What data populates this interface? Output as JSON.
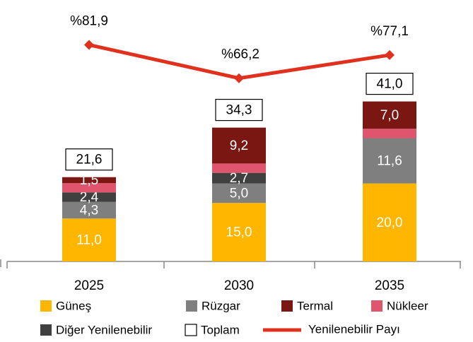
{
  "chart_data": {
    "type": "bar",
    "stacked": true,
    "categories": [
      "2025",
      "2030",
      "2035"
    ],
    "ylim": [
      0,
      67
    ],
    "y2lim": [
      -20,
      103
    ],
    "series": [
      {
        "name": "Güneş",
        "type": "bar",
        "color": "#FFB600",
        "values": [
          11.0,
          15.0,
          20.0
        ],
        "value_labels": [
          "11,0",
          "15,0",
          "20,0"
        ]
      },
      {
        "name": "Rüzgar",
        "type": "bar",
        "color": "#7F7F7F",
        "values": [
          4.3,
          5.0,
          11.6
        ],
        "value_labels": [
          "4,3",
          "5,0",
          "11,6"
        ]
      },
      {
        "name": "Diğer Yenilenebilir",
        "type": "bar",
        "color": "#404040",
        "values": [
          2.4,
          2.7,
          0
        ],
        "value_labels": [
          "2,4",
          "2,7",
          null
        ]
      },
      {
        "name": "Nükleer",
        "type": "bar",
        "color": "#E0556E",
        "values": [
          2.4,
          2.4,
          2.4
        ],
        "value_labels": [
          null,
          null,
          null
        ]
      },
      {
        "name": "Termal",
        "type": "bar",
        "color": "#7A1712",
        "values": [
          1.5,
          9.2,
          7.0
        ],
        "value_labels": [
          "1,5",
          "9,2",
          "7,0"
        ]
      },
      {
        "name": "Toplam",
        "type": "total",
        "color": "#000000",
        "values": [
          21.6,
          34.3,
          41.0
        ],
        "value_labels": [
          "21,6",
          "34,3",
          "41,0"
        ]
      },
      {
        "name": "Yenilenebilir Payı",
        "type": "line",
        "axis": "y2",
        "color": "#E0301E",
        "values": [
          81.9,
          66.2,
          77.1
        ],
        "value_labels": [
          "%81,9",
          "%66,2",
          "%77,1"
        ]
      }
    ]
  }
}
